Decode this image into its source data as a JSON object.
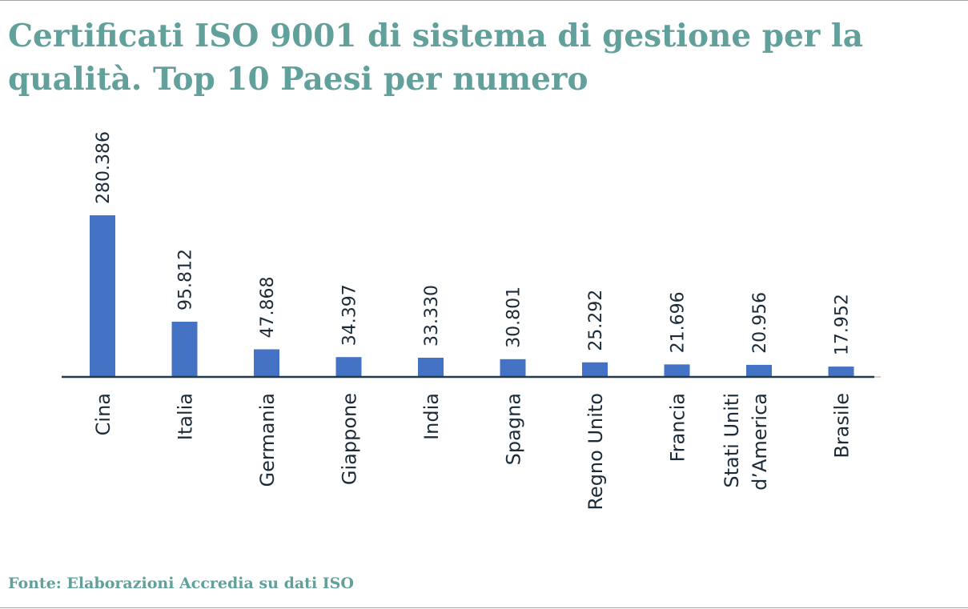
{
  "title": "Certificati ISO 9001 di sistema di gestione per la qualità. Top 10 Paesi per numero",
  "source": "Fonte: Elaborazioni Accredia su dati ISO",
  "colors": {
    "bar": "#4472c4",
    "axis": "#1f3b4d",
    "title": "#62a09c",
    "text": "#1c2b39"
  },
  "chart_data": {
    "type": "bar",
    "categories": [
      "Cina",
      "Italia",
      "Germania",
      "Giappone",
      "India",
      "Spagna",
      "Regno Unito",
      "Francia",
      "Stati Uniti d’America",
      "Brasile"
    ],
    "category_lines": [
      [
        "Cina"
      ],
      [
        "Italia"
      ],
      [
        "Germania"
      ],
      [
        "Giappone"
      ],
      [
        "India"
      ],
      [
        "Spagna"
      ],
      [
        "Regno Unito"
      ],
      [
        "Francia"
      ],
      [
        "Stati Uniti",
        "d’America"
      ],
      [
        "Brasile"
      ]
    ],
    "values": [
      280386,
      95812,
      47868,
      34397,
      33330,
      30801,
      25292,
      21696,
      20956,
      17952
    ],
    "value_labels": [
      "280.386",
      "95.812",
      "47.868",
      "34.397",
      "33.330",
      "30.801",
      "25.292",
      "21.696",
      "20.956",
      "17.952"
    ],
    "grid": false,
    "legend": "none"
  }
}
